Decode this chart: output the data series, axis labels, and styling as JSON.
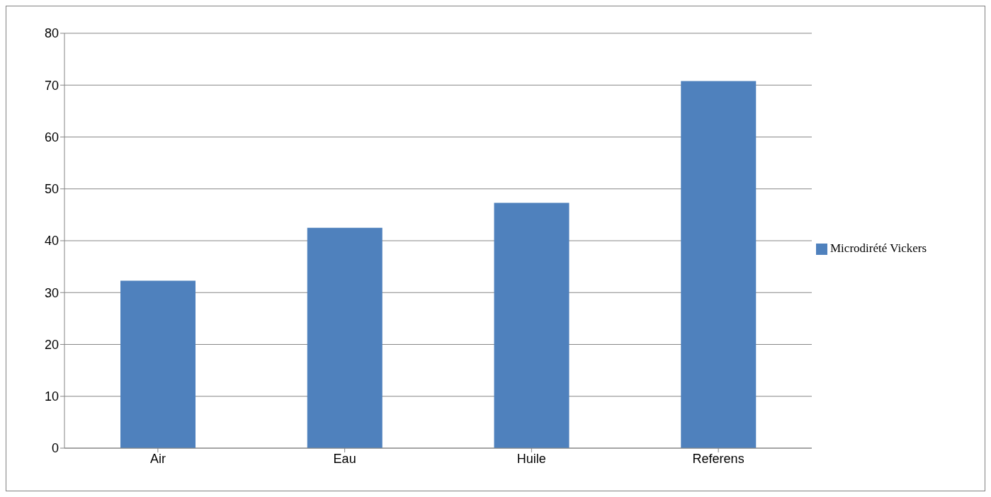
{
  "chart_data": {
    "type": "bar",
    "categories": [
      "Air",
      "Eau",
      "Huile",
      "Referens"
    ],
    "series": [
      {
        "name": "Microdirété Vickers",
        "color": "#4f81bd",
        "values": [
          32.3,
          42.5,
          47.3,
          70.8
        ]
      }
    ],
    "ylim": [
      0,
      80
    ],
    "yticks": [
      0,
      10,
      20,
      30,
      40,
      50,
      60,
      70,
      80
    ],
    "grid": "y",
    "legend": "right"
  }
}
